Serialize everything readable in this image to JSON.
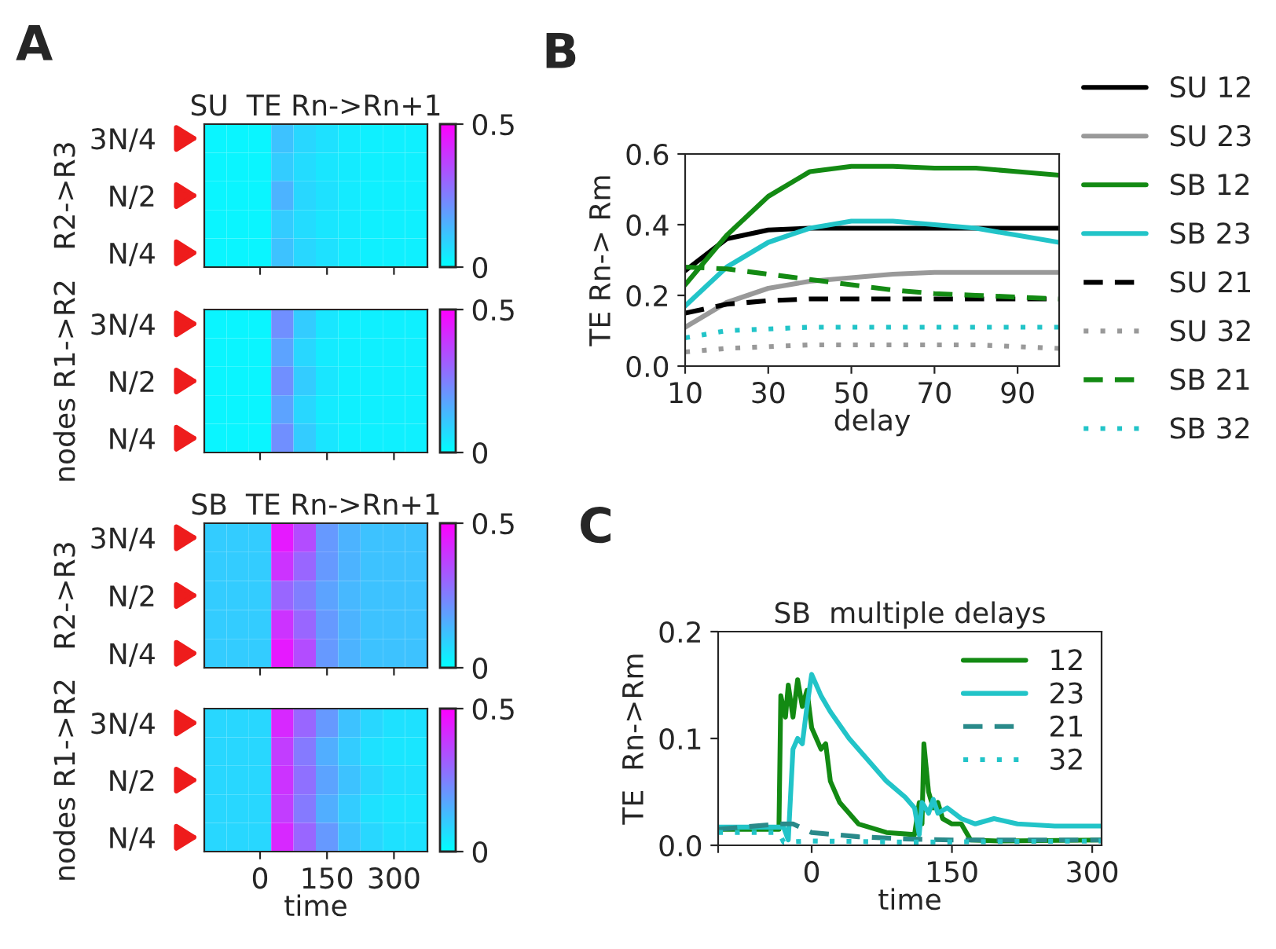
{
  "chart_data": [
    {
      "type": "heatmap",
      "title": "SU  TE Rn->Rn+1",
      "ylabel": "R2->R3",
      "annotations": [
        "A"
      ],
      "categories": [
        null,
        null,
        "0",
        null,
        null,
        "150",
        null,
        null,
        "300",
        null
      ],
      "y_categories": [
        "3N/4",
        null,
        "N/2",
        null,
        "N/4"
      ],
      "tick_labels": "y",
      "clim": [
        0,
        0.5
      ],
      "cticks": [
        0,
        0.5
      ],
      "cells": [
        [
          0.02,
          0.02,
          0.02,
          0.12,
          0.08,
          0.06,
          0.04,
          0.03,
          0.03,
          0.03
        ],
        [
          0.02,
          0.02,
          0.02,
          0.1,
          0.07,
          0.05,
          0.04,
          0.03,
          0.03,
          0.03
        ],
        [
          0.02,
          0.02,
          0.02,
          0.15,
          0.08,
          0.06,
          0.04,
          0.03,
          0.03,
          0.03
        ],
        [
          0.02,
          0.02,
          0.02,
          0.1,
          0.07,
          0.05,
          0.04,
          0.03,
          0.03,
          0.03
        ],
        [
          0.02,
          0.02,
          0.02,
          0.12,
          0.08,
          0.06,
          0.04,
          0.03,
          0.03,
          0.03
        ]
      ]
    },
    {
      "type": "heatmap",
      "ylabel": "nodes R1->R2",
      "categories": [
        null,
        null,
        "0",
        null,
        null,
        "150",
        null,
        null,
        "300",
        null
      ],
      "y_categories": [
        "3N/4",
        null,
        "N/2",
        null,
        "N/4"
      ],
      "tick_labels": "y",
      "clim": [
        0,
        0.5
      ],
      "cticks": [
        0,
        0.5
      ],
      "cells": [
        [
          0.02,
          0.02,
          0.02,
          0.22,
          0.1,
          0.05,
          0.03,
          0.03,
          0.03,
          0.03
        ],
        [
          0.02,
          0.02,
          0.02,
          0.18,
          0.08,
          0.04,
          0.03,
          0.03,
          0.03,
          0.03
        ],
        [
          0.02,
          0.02,
          0.02,
          0.22,
          0.1,
          0.05,
          0.03,
          0.03,
          0.03,
          0.03
        ],
        [
          0.02,
          0.02,
          0.02,
          0.18,
          0.08,
          0.04,
          0.03,
          0.03,
          0.03,
          0.03
        ],
        [
          0.02,
          0.02,
          0.02,
          0.22,
          0.1,
          0.05,
          0.03,
          0.03,
          0.03,
          0.03
        ]
      ]
    },
    {
      "type": "heatmap",
      "title": "SB  TE Rn->Rn+1",
      "ylabel": "R2->R3",
      "categories": [
        null,
        null,
        "0",
        null,
        null,
        "150",
        null,
        null,
        "300",
        null
      ],
      "y_categories": [
        "3N/4",
        null,
        "N/2",
        null,
        "N/4"
      ],
      "tick_labels": "y",
      "clim": [
        0,
        0.5
      ],
      "cticks": [
        0,
        0.5
      ],
      "cells": [
        [
          0.1,
          0.1,
          0.1,
          0.45,
          0.35,
          0.2,
          0.15,
          0.12,
          0.12,
          0.12
        ],
        [
          0.1,
          0.1,
          0.1,
          0.4,
          0.3,
          0.2,
          0.15,
          0.12,
          0.12,
          0.12
        ],
        [
          0.1,
          0.1,
          0.1,
          0.3,
          0.25,
          0.18,
          0.14,
          0.12,
          0.12,
          0.12
        ],
        [
          0.1,
          0.1,
          0.1,
          0.4,
          0.3,
          0.2,
          0.15,
          0.12,
          0.12,
          0.12
        ],
        [
          0.1,
          0.1,
          0.1,
          0.45,
          0.35,
          0.2,
          0.15,
          0.12,
          0.12,
          0.12
        ]
      ]
    },
    {
      "type": "heatmap",
      "ylabel": "nodes R1->R2",
      "xlabel": "time",
      "categories": [
        null,
        null,
        "0",
        null,
        null,
        "150",
        null,
        null,
        "300",
        null
      ],
      "y_categories": [
        "3N/4",
        null,
        "N/2",
        null,
        "N/4"
      ],
      "clim": [
        0,
        0.5
      ],
      "cticks": [
        0,
        0.5
      ],
      "cells": [
        [
          0.08,
          0.08,
          0.08,
          0.42,
          0.3,
          0.2,
          0.12,
          0.08,
          0.06,
          0.06
        ],
        [
          0.08,
          0.08,
          0.08,
          0.38,
          0.26,
          0.16,
          0.1,
          0.06,
          0.05,
          0.05
        ],
        [
          0.08,
          0.08,
          0.08,
          0.4,
          0.28,
          0.18,
          0.12,
          0.08,
          0.06,
          0.06
        ],
        [
          0.08,
          0.08,
          0.08,
          0.38,
          0.26,
          0.16,
          0.1,
          0.06,
          0.05,
          0.05
        ],
        [
          0.08,
          0.08,
          0.08,
          0.42,
          0.3,
          0.2,
          0.12,
          0.08,
          0.06,
          0.06
        ]
      ]
    },
    {
      "type": "line",
      "xlabel": "delay",
      "ylabel": "TE Rn-> Rm",
      "annotations": [
        "B"
      ],
      "xlim": [
        10,
        100
      ],
      "xticks": [
        10,
        30,
        50,
        70,
        90
      ],
      "ylim": [
        0,
        0.6
      ],
      "yticks": [
        {
          "value": 0,
          "label": "0.0"
        },
        0.2,
        0.4,
        0.6
      ],
      "legend": "right",
      "grid": false,
      "x": [
        10,
        20,
        30,
        40,
        50,
        60,
        70,
        80,
        90,
        100
      ],
      "series": [
        {
          "name": "SU 12",
          "color": "#000000",
          "line_style": "solid",
          "values": [
            0.27,
            0.36,
            0.385,
            0.39,
            0.39,
            0.39,
            0.39,
            0.39,
            0.39,
            0.39
          ]
        },
        {
          "name": "SU 23",
          "color": "#999999",
          "line_style": "solid",
          "values": [
            0.11,
            0.18,
            0.22,
            0.24,
            0.25,
            0.26,
            0.265,
            0.265,
            0.265,
            0.265
          ]
        },
        {
          "name": "SB 12",
          "color": "#138a13",
          "line_style": "solid",
          "values": [
            0.23,
            0.37,
            0.48,
            0.55,
            0.565,
            0.565,
            0.56,
            0.56,
            0.55,
            0.54
          ]
        },
        {
          "name": "SB 23",
          "color": "#22c4c8",
          "line_style": "solid",
          "values": [
            0.17,
            0.28,
            0.35,
            0.39,
            0.41,
            0.41,
            0.4,
            0.39,
            0.37,
            0.35
          ]
        },
        {
          "name": "SU 21",
          "color": "#000000",
          "line_style": "dashed",
          "values": [
            0.15,
            0.175,
            0.185,
            0.19,
            0.19,
            0.19,
            0.19,
            0.19,
            0.19,
            0.19
          ]
        },
        {
          "name": "SU 32",
          "color": "#999999",
          "line_style": "dotted",
          "values": [
            0.04,
            0.05,
            0.055,
            0.06,
            0.06,
            0.06,
            0.06,
            0.06,
            0.055,
            0.05
          ]
        },
        {
          "name": "SB 21",
          "color": "#138a13",
          "line_style": "dashed",
          "values": [
            0.28,
            0.275,
            0.26,
            0.245,
            0.23,
            0.215,
            0.205,
            0.2,
            0.195,
            0.19
          ]
        },
        {
          "name": "SB 32",
          "color": "#22c4c8",
          "line_style": "dotted",
          "values": [
            0.08,
            0.1,
            0.105,
            0.11,
            0.11,
            0.11,
            0.11,
            0.11,
            0.11,
            0.11
          ]
        }
      ]
    },
    {
      "type": "line",
      "title": "SB  multiple delays",
      "xlabel": "time",
      "ylabel": "TE  Rn->Rm",
      "annotations": [
        "C"
      ],
      "xlim": [
        -100,
        310
      ],
      "xticks": [
        {
          "value": -100,
          "label": null
        },
        0,
        150,
        300
      ],
      "ylim": [
        0,
        0.2
      ],
      "yticks": [
        {
          "value": 0,
          "label": "0.0"
        },
        0.1,
        0.2
      ],
      "legend": "top right",
      "grid": false,
      "series": [
        {
          "name": "12",
          "color": "#138a13",
          "line_style": "solid",
          "x": [
            -100,
            -35,
            -33,
            -28,
            -25,
            -20,
            -15,
            -10,
            -5,
            0,
            5,
            10,
            15,
            20,
            30,
            50,
            80,
            110,
            115,
            118,
            120,
            125,
            130,
            135,
            140,
            150,
            160,
            170,
            200,
            310
          ],
          "values": [
            0.015,
            0.015,
            0.14,
            0.12,
            0.15,
            0.12,
            0.155,
            0.13,
            0.145,
            0.11,
            0.1,
            0.09,
            0.095,
            0.06,
            0.04,
            0.02,
            0.012,
            0.01,
            0.04,
            0.02,
            0.095,
            0.05,
            0.035,
            0.04,
            0.025,
            0.02,
            0.02,
            0.005,
            0.004,
            0.005
          ]
        },
        {
          "name": "23",
          "color": "#22c4c8",
          "line_style": "solid",
          "x": [
            -100,
            -30,
            -25,
            -20,
            -15,
            -10,
            -5,
            0,
            5,
            10,
            20,
            40,
            60,
            80,
            100,
            110,
            115,
            118,
            125,
            130,
            135,
            145,
            160,
            175,
            195,
            220,
            260,
            310
          ],
          "values": [
            0.017,
            0.017,
            0.005,
            0.09,
            0.1,
            0.095,
            0.13,
            0.16,
            0.15,
            0.14,
            0.125,
            0.1,
            0.08,
            0.06,
            0.045,
            0.035,
            0.01,
            0.04,
            0.03,
            0.043,
            0.03,
            0.035,
            0.025,
            0.02,
            0.025,
            0.02,
            0.018,
            0.018
          ]
        },
        {
          "name": "21",
          "color": "#2a8a8a",
          "line_style": "dashed",
          "x": [
            -100,
            -35,
            -20,
            0,
            50,
            100,
            150,
            310
          ],
          "values": [
            0.015,
            0.02,
            0.02,
            0.012,
            0.008,
            0.006,
            0.005,
            0.005
          ]
        },
        {
          "name": "32",
          "color": "#22c4c8",
          "line_style": "dotted",
          "x": [
            -100,
            -35,
            -30,
            0,
            100,
            310
          ],
          "values": [
            0.012,
            0.012,
            0.003,
            0.004,
            0.003,
            0.004
          ]
        }
      ]
    }
  ]
}
